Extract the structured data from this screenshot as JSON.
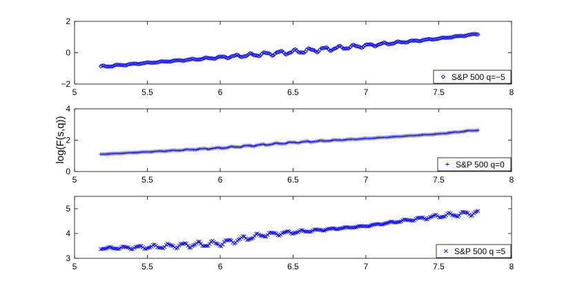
{
  "figure": {
    "ylabel": "log(F(s,q))"
  },
  "chart_data": [
    {
      "type": "scatter",
      "xlim": [
        5,
        8
      ],
      "ylim": [
        -2,
        2
      ],
      "xticks": [
        5,
        5.5,
        6,
        6.5,
        7,
        7.5,
        8
      ],
      "yticks": [
        -2,
        0,
        2
      ],
      "x_tick_labels": [
        "5",
        "5.5",
        "6",
        "6.5",
        "7",
        "7.5",
        "8"
      ],
      "y_tick_labels": [
        "−2",
        "0",
        "2"
      ],
      "legend_position": "bottom-right",
      "grid": false,
      "series": [
        {
          "name": "S&P 500 q=−5",
          "marker": "diamond",
          "color": "#0000ff",
          "x_range": [
            5.18,
            7.77
          ],
          "trend": [
            [
              5.18,
              -0.9
            ],
            [
              5.5,
              -0.65
            ],
            [
              6.0,
              -0.3
            ],
            [
              6.5,
              0.05
            ],
            [
              7.0,
              0.45
            ],
            [
              7.5,
              0.9
            ],
            [
              7.77,
              1.2
            ]
          ],
          "wiggle": 0.12
        }
      ]
    },
    {
      "type": "scatter",
      "xlim": [
        5,
        8
      ],
      "ylim": [
        0,
        4
      ],
      "xticks": [
        5,
        5.5,
        6,
        6.5,
        7,
        7.5,
        8
      ],
      "yticks": [
        0,
        2,
        4
      ],
      "x_tick_labels": [
        "5",
        "5.5",
        "6",
        "6.5",
        "7",
        "7.5",
        "8"
      ],
      "y_tick_labels": [
        "0",
        "2",
        "4"
      ],
      "legend_position": "bottom-right",
      "grid": false,
      "series": [
        {
          "name": "S&P 500 q=0",
          "marker": "plus",
          "color": "#0000ff",
          "x_range": [
            5.18,
            7.77
          ],
          "trend": [
            [
              5.18,
              1.1
            ],
            [
              5.5,
              1.25
            ],
            [
              6.0,
              1.5
            ],
            [
              6.5,
              1.85
            ],
            [
              7.0,
              2.1
            ],
            [
              7.5,
              2.4
            ],
            [
              7.77,
              2.65
            ]
          ],
          "wiggle": 0.04
        }
      ]
    },
    {
      "type": "scatter",
      "xlim": [
        5,
        8
      ],
      "ylim": [
        3,
        5.5
      ],
      "xticks": [
        5,
        5.5,
        6,
        6.5,
        7,
        7.5,
        8
      ],
      "yticks": [
        3,
        4,
        5
      ],
      "x_tick_labels": [
        "5",
        "5.5",
        "6",
        "6.5",
        "7",
        "7.5",
        "8"
      ],
      "y_tick_labels": [
        "3",
        "4",
        "5"
      ],
      "legend_position": "bottom-right",
      "grid": false,
      "series": [
        {
          "name": "S&P 500 q =5",
          "marker": "x",
          "color": "#0000ff",
          "x_range": [
            5.18,
            7.77
          ],
          "trend": [
            [
              5.18,
              3.4
            ],
            [
              5.5,
              3.45
            ],
            [
              6.0,
              3.6
            ],
            [
              6.3,
              3.95
            ],
            [
              6.6,
              4.1
            ],
            [
              7.0,
              4.3
            ],
            [
              7.3,
              4.55
            ],
            [
              7.5,
              4.7
            ],
            [
              7.77,
              4.85
            ]
          ],
          "wiggle": 0.1
        }
      ]
    }
  ]
}
